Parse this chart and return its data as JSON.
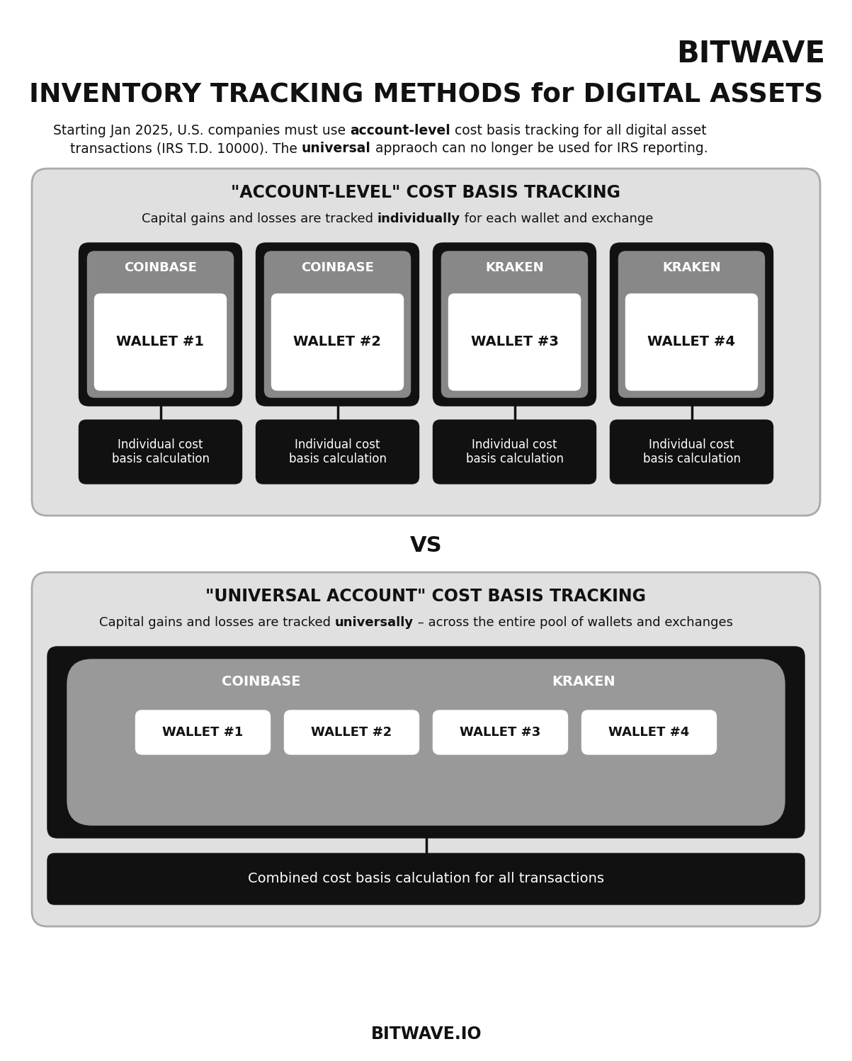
{
  "bg_color": "#ffffff",
  "white": "#ffffff",
  "black": "#111111",
  "mid_gray": "#888888",
  "light_gray": "#e0e0e0",
  "logo_text": "BITWAVE",
  "title": "INVENTORY TRACKING METHODS for DIGITAL ASSETS",
  "wallet_labels_top": [
    "COINBASE",
    "COINBASE",
    "KRAKEN",
    "KRAKEN"
  ],
  "wallet_nums_top": [
    "WALLET #1",
    "WALLET #2",
    "WALLET #3",
    "WALLET #4"
  ],
  "calc_label": "Individual cost\nbasis calculation",
  "vs_text": "VS",
  "section1_title": "\"ACCOUNT-LEVEL\" COST BASIS TRACKING",
  "section2_title": "\"UNIVERSAL ACCOUNT\" COST BASIS TRACKING",
  "coinbase_label": "COINBASE",
  "kraken_label": "KRAKEN",
  "wallet_nums_bottom": [
    "WALLET #1",
    "WALLET #2",
    "WALLET #3",
    "WALLET #4"
  ],
  "combined_label": "Combined cost basis calculation for all transactions",
  "footer": "BITWAVE.IO"
}
